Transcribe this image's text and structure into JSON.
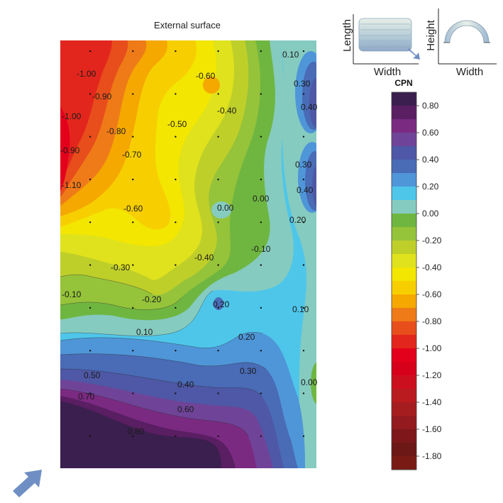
{
  "chart_data": {
    "type": "contour",
    "title": "External surface",
    "colorbar": {
      "label": "CPN",
      "range": [
        -1.9,
        0.9
      ],
      "step": 0.1,
      "ticks": [
        "0.80",
        "0.60",
        "0.40",
        "0.20",
        "0.00",
        "-0.20",
        "-0.40",
        "-0.60",
        "-0.80",
        "-1.00",
        "-1.20",
        "-1.40",
        "-1.60",
        "-1.80"
      ],
      "colors": [
        "#3b1f4f",
        "#5a1e62",
        "#7b2a82",
        "#6f4498",
        "#4e58a6",
        "#4a6bb6",
        "#4f96d8",
        "#4ec6ea",
        "#86cbc0",
        "#6fb641",
        "#95c33a",
        "#bfcf2a",
        "#dfe21c",
        "#f3e600",
        "#f7cf00",
        "#f5a800",
        "#ee7b18",
        "#e84d1c",
        "#e3261d",
        "#e3001b",
        "#d7001b",
        "#cc0f1e",
        "#b91b1f",
        "#a61d20",
        "#931a1e",
        "#7d1719",
        "#6b1816",
        "#7a1a14"
      ]
    },
    "contour_labels": [
      {
        "text": "0.10",
        "value": 0.1
      },
      {
        "text": "-1.00",
        "value": -1.0
      },
      {
        "text": "-0.60",
        "value": -0.6
      },
      {
        "text": "0.30",
        "value": 0.3
      },
      {
        "text": "-0.90",
        "value": -0.9
      },
      {
        "text": "0.40",
        "value": 0.4
      },
      {
        "text": "-0.40",
        "value": -0.4
      },
      {
        "text": "-1.00",
        "value": -1.0
      },
      {
        "text": "-0.50",
        "value": -0.5
      },
      {
        "text": "-0.80",
        "value": -0.8
      },
      {
        "text": "-0.90",
        "value": -0.9
      },
      {
        "text": "-0.70",
        "value": -0.7
      },
      {
        "text": "0.30",
        "value": 0.3
      },
      {
        "text": "0.40",
        "value": 0.4
      },
      {
        "text": "-1.10",
        "value": -1.1
      },
      {
        "text": "0.00",
        "value": 0.0
      },
      {
        "text": "0.00",
        "value": 0.0
      },
      {
        "text": "-0.60",
        "value": -0.6
      },
      {
        "text": "0.20",
        "value": 0.2
      },
      {
        "text": "-0.10",
        "value": -0.1
      },
      {
        "text": "-0.40",
        "value": -0.4
      },
      {
        "text": "-0.30",
        "value": -0.3
      },
      {
        "text": "-0.10",
        "value": -0.1
      },
      {
        "text": "-0.20",
        "value": -0.2
      },
      {
        "text": "0.20",
        "value": 0.2
      },
      {
        "text": "0.10",
        "value": 0.1
      },
      {
        "text": "0.10",
        "value": 0.1
      },
      {
        "text": "0.20",
        "value": 0.2
      },
      {
        "text": "0.30",
        "value": 0.3
      },
      {
        "text": "0.50",
        "value": 0.5
      },
      {
        "text": "0.00",
        "value": 0.0
      },
      {
        "text": "0.40",
        "value": 0.4
      },
      {
        "text": "0.70",
        "value": 0.7
      },
      {
        "text": "0.60",
        "value": 0.6
      },
      {
        "text": "0.80",
        "value": 0.8
      }
    ],
    "measurement_grid": {
      "columns": 6,
      "rows": 10
    }
  },
  "inset_plan": {
    "xlabel": "Width",
    "ylabel": "Length"
  },
  "inset_section": {
    "xlabel": "Width",
    "ylabel": "Height"
  },
  "wind_arrow_color": "#6f8fc4"
}
